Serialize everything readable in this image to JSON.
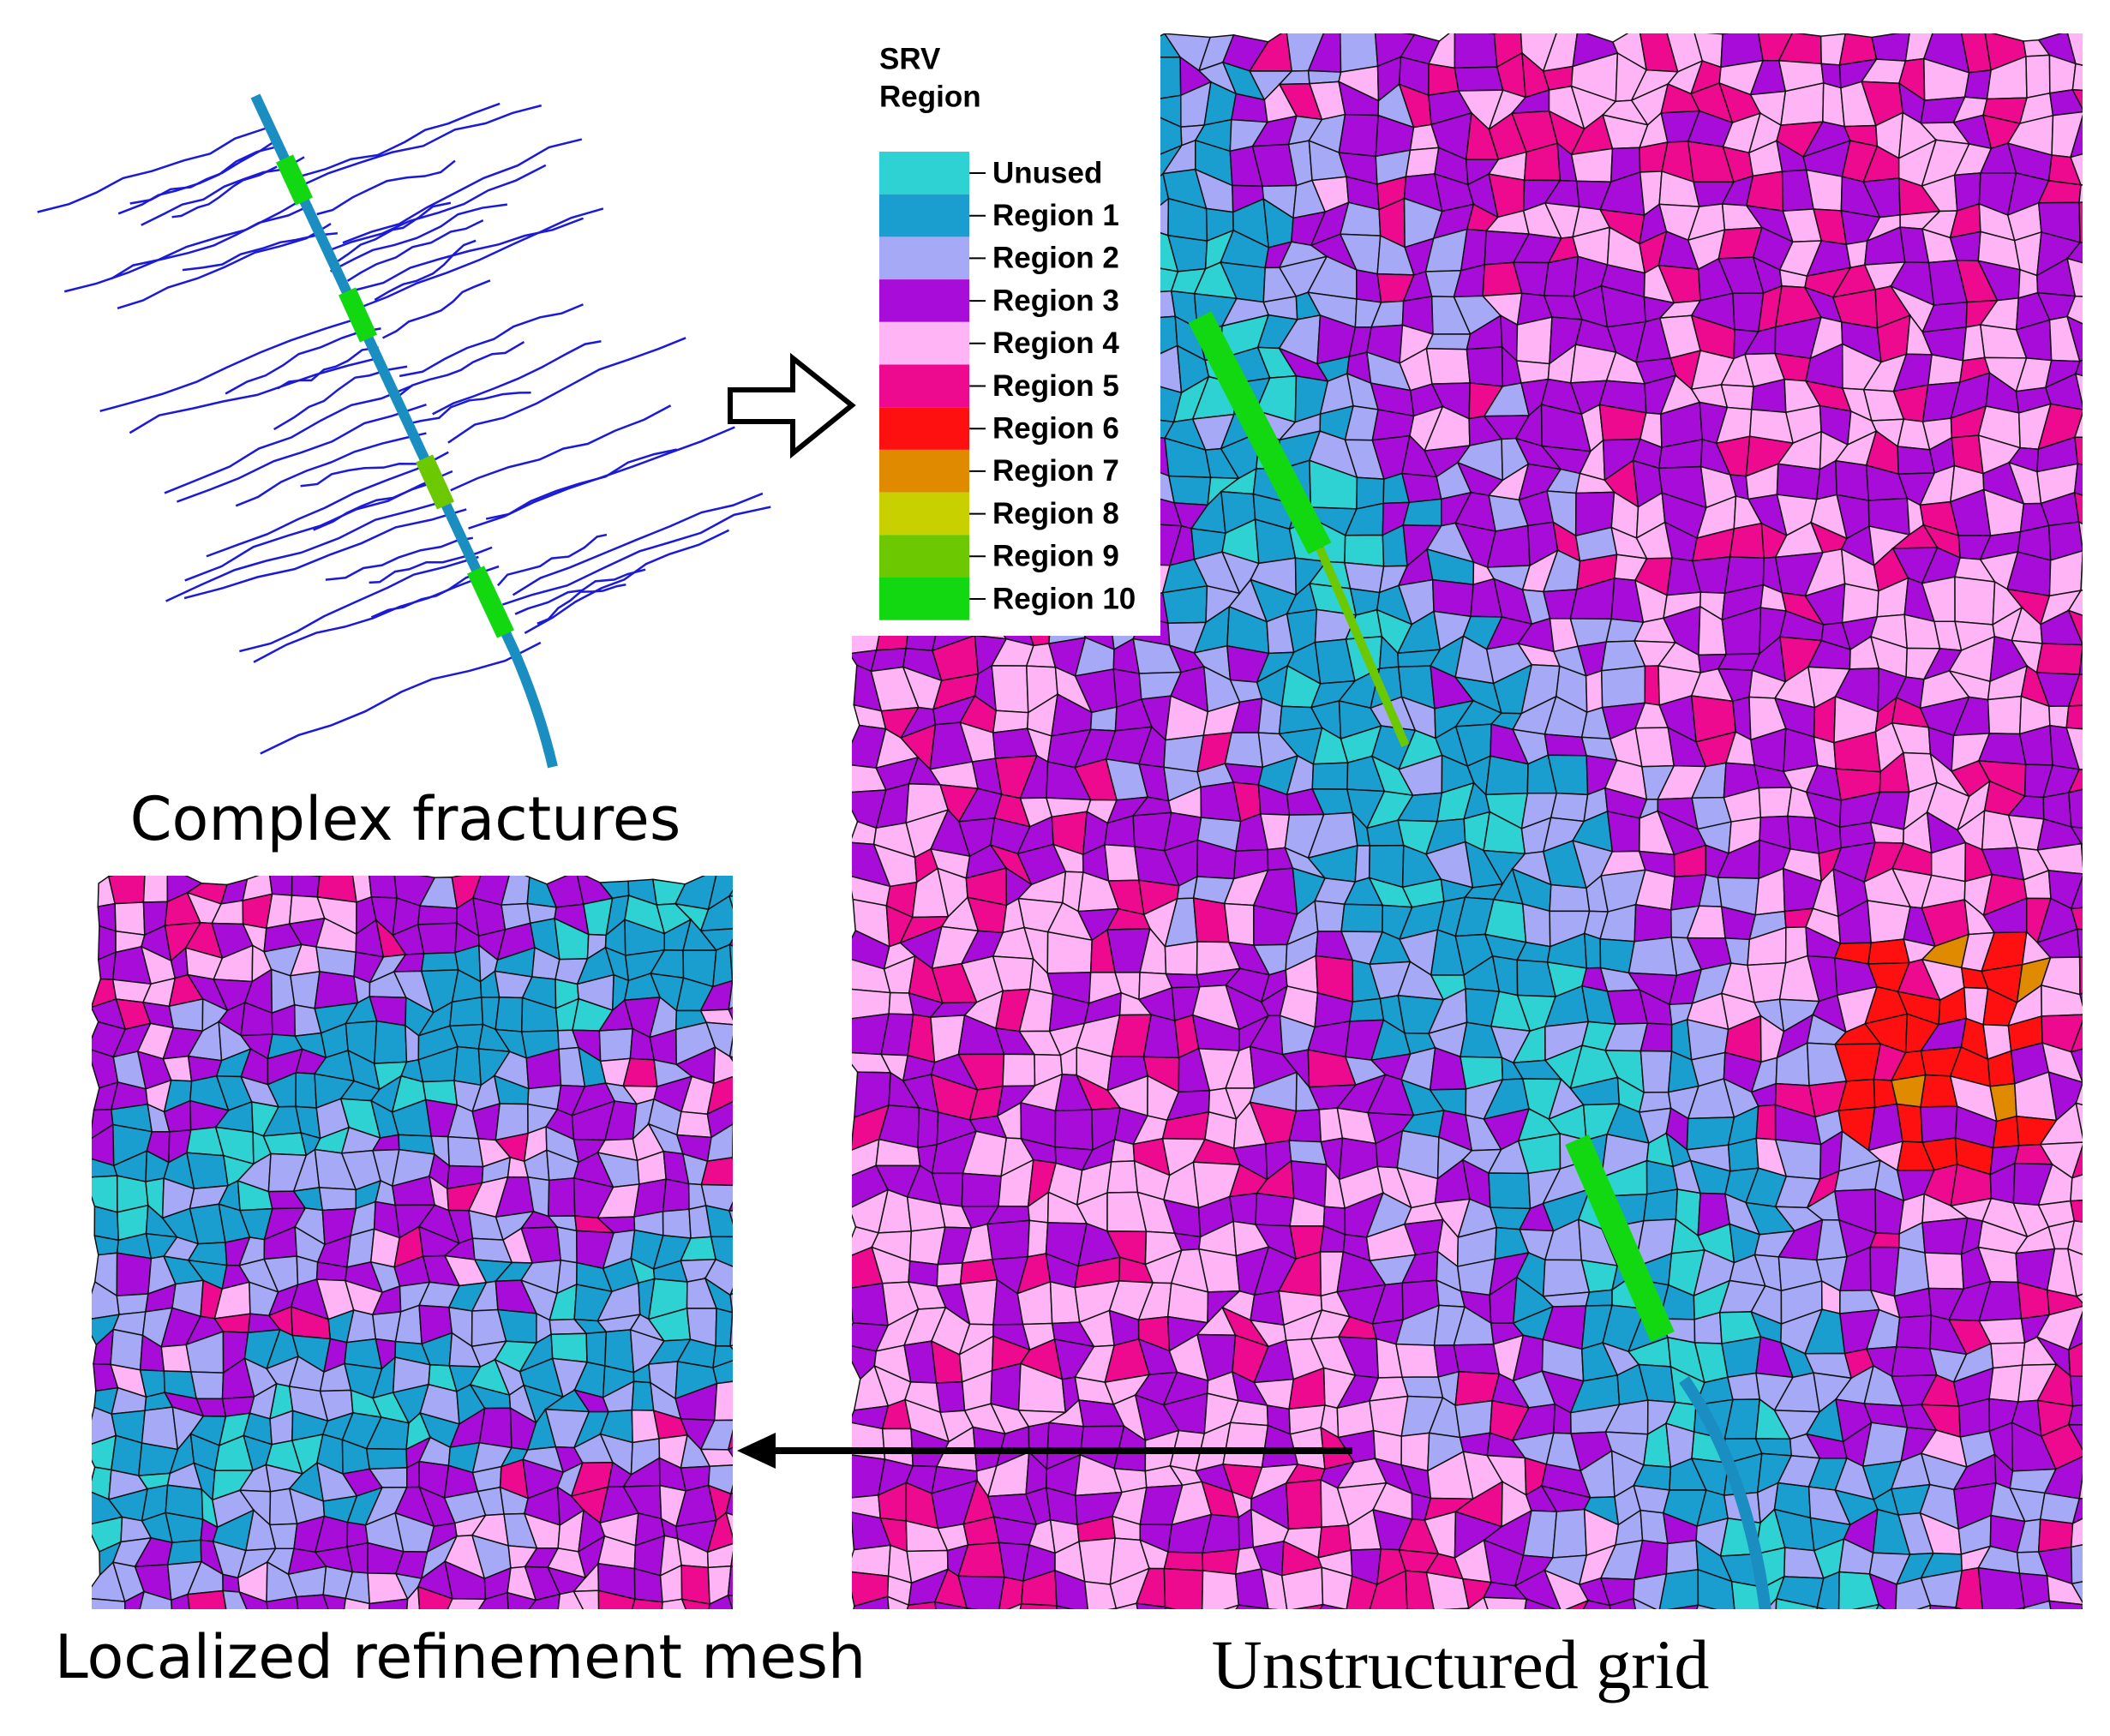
{
  "captions": {
    "fractures": "Complex fractures",
    "local_mesh": "Localized refinement mesh",
    "grid": "Unstructured grid"
  },
  "legend": {
    "title": [
      "SRV",
      "Region"
    ],
    "items": [
      {
        "label": "Unused",
        "color": "#2fd2d2"
      },
      {
        "label": "Region 1",
        "color": "#1a9ed0"
      },
      {
        "label": "Region 2",
        "color": "#a6aaf6"
      },
      {
        "label": "Region 3",
        "color": "#a80cd8"
      },
      {
        "label": "Region 4",
        "color": "#ffb4f6"
      },
      {
        "label": "Region 5",
        "color": "#ee0a8e"
      },
      {
        "label": "Region 6",
        "color": "#ff1010"
      },
      {
        "label": "Region 7",
        "color": "#e08a00"
      },
      {
        "label": "Region 8",
        "color": "#c8d000"
      },
      {
        "label": "Region 9",
        "color": "#6cc800"
      },
      {
        "label": "Region 10",
        "color": "#12d812"
      }
    ]
  }
}
